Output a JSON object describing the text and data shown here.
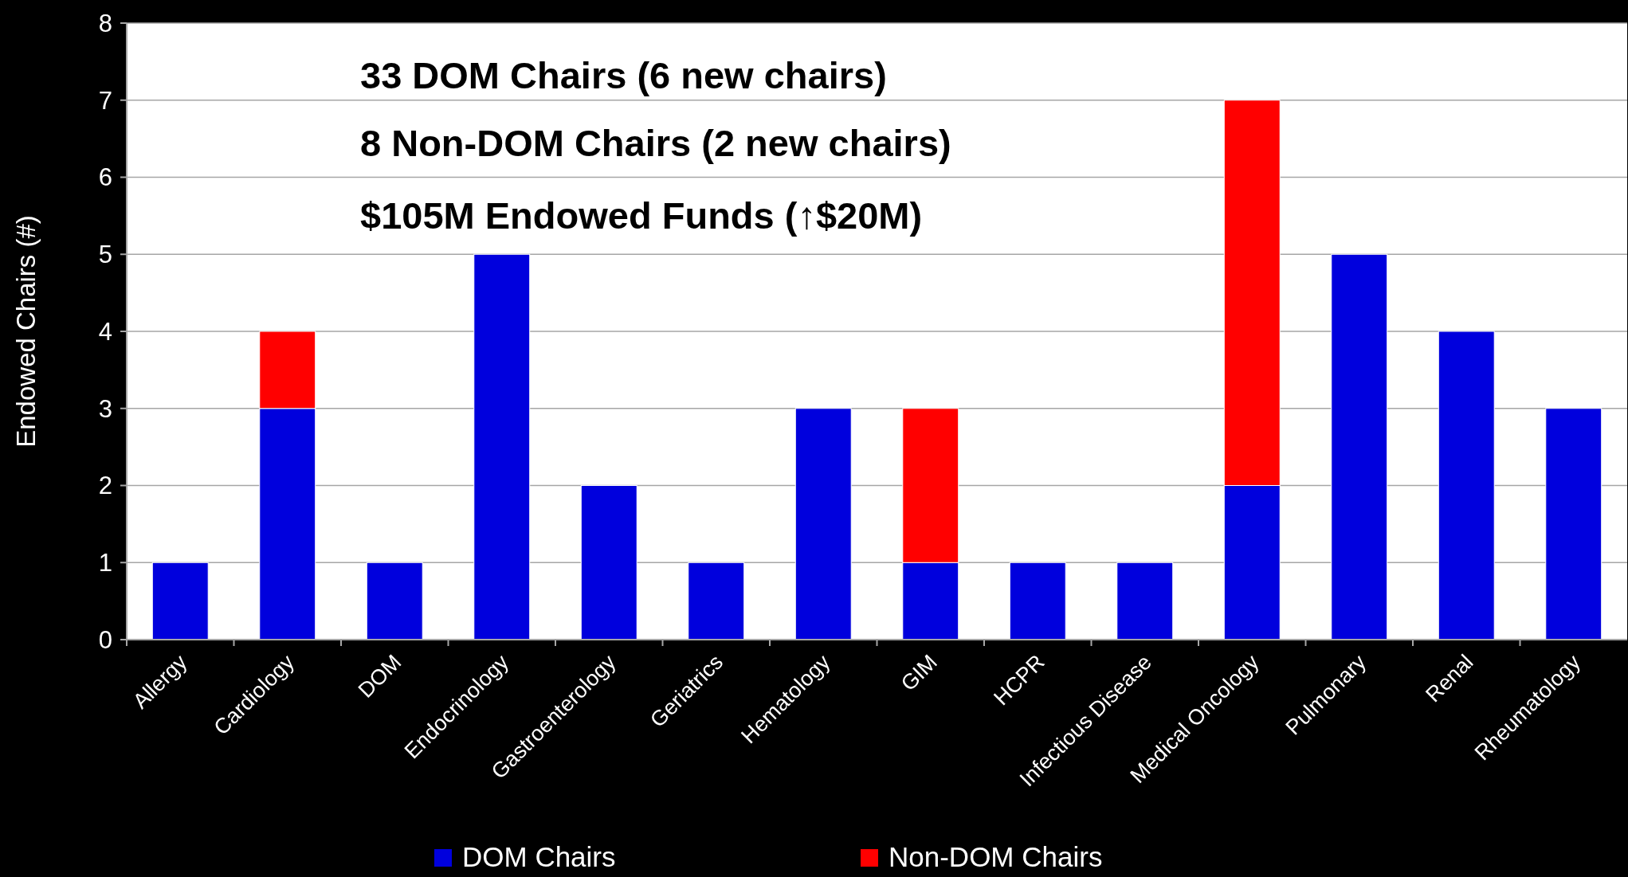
{
  "chart_data": {
    "type": "bar",
    "stacked": true,
    "ylabel": "Endowed Chairs (#)",
    "categories": [
      "Allergy",
      "Cardiology",
      "DOM",
      "Endocrinology",
      "Gastroenterology",
      "Geriatrics",
      "Hematology",
      "GIM",
      "HCPR",
      "Infectious Disease",
      "Medical Oncology",
      "Pulmonary",
      "Renal",
      "Rheumatology"
    ],
    "series": [
      {
        "name": "DOM Chairs",
        "color": "#0000dd",
        "values": [
          1,
          3,
          1,
          5,
          2,
          1,
          3,
          1,
          1,
          1,
          2,
          5,
          4,
          3
        ]
      },
      {
        "name": "Non-DOM Chairs",
        "color": "#ff0000",
        "values": [
          0,
          1,
          0,
          0,
          0,
          0,
          0,
          2,
          0,
          0,
          5,
          0,
          0,
          0
        ]
      }
    ],
    "ylim": [
      0,
      8
    ],
    "yticks": [
      0,
      1,
      2,
      3,
      4,
      5,
      6,
      7,
      8
    ],
    "grid": "y",
    "legend": "bottom",
    "annotations": [
      "33 DOM Chairs (6 new chairs)",
      "8 Non-DOM Chairs (2 new chairs)",
      "$105M Endowed Funds (↑$20M)"
    ]
  }
}
